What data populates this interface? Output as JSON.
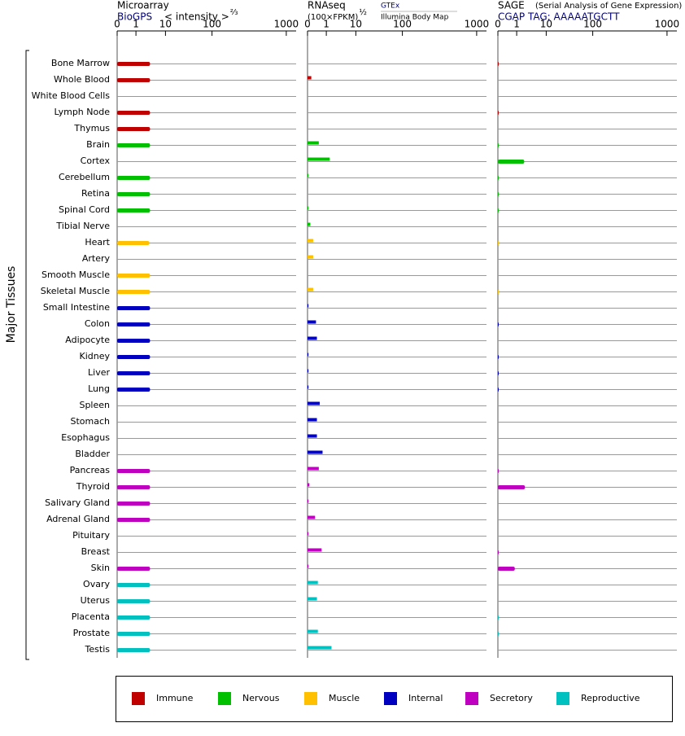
{
  "chart_data": {
    "type": "bar",
    "y_label": "Major Tissues",
    "categories": [
      "Bone Marrow",
      "Whole Blood",
      "White Blood Cells",
      "Lymph Node",
      "Thymus",
      "Brain",
      "Cortex",
      "Cerebellum",
      "Retina",
      "Spinal Cord",
      "Tibial Nerve",
      "Heart",
      "Artery",
      "Smooth Muscle",
      "Skeletal Muscle",
      "Small Intestine",
      "Colon",
      "Adipocyte",
      "Kidney",
      "Liver",
      "Lung",
      "Spleen",
      "Stomach",
      "Esophagus",
      "Bladder",
      "Pancreas",
      "Thyroid",
      "Salivary Gland",
      "Adrenal Gland",
      "Pituitary",
      "Breast",
      "Skin",
      "Ovary",
      "Uterus",
      "Placenta",
      "Prostate",
      "Testis"
    ],
    "category_colors": [
      "#c00000",
      "#c00000",
      "#c00000",
      "#c00000",
      "#c00000",
      "#00c000",
      "#00c000",
      "#00c000",
      "#00c000",
      "#00c000",
      "#00c000",
      "#ffc000",
      "#ffc000",
      "#ffc000",
      "#ffc000",
      "#0000c0",
      "#0000c0",
      "#0000c0",
      "#0000c0",
      "#0000c0",
      "#0000c0",
      "#0000c0",
      "#0000c0",
      "#0000c0",
      "#0000c0",
      "#c000c0",
      "#c000c0",
      "#c000c0",
      "#c000c0",
      "#c000c0",
      "#c000c0",
      "#c000c0",
      "#00c0c0",
      "#00c0c0",
      "#00c0c0",
      "#00c0c0",
      "#00c0c0"
    ],
    "legend": [
      {
        "name": "Immune",
        "color": "#c00000"
      },
      {
        "name": "Nervous",
        "color": "#00c000"
      },
      {
        "name": "Muscle",
        "color": "#ffc000"
      },
      {
        "name": "Internal",
        "color": "#0000c0"
      },
      {
        "name": "Secretory",
        "color": "#c000c0"
      },
      {
        "name": "Reproductive",
        "color": "#00c0c0"
      }
    ],
    "panels": [
      {
        "title": "Microarray",
        "subtitle": "BioGPS",
        "axis_label": "< intensity >",
        "axis_exponent": "⅔",
        "xlim": [
          0,
          1000
        ],
        "xticks": [
          0,
          1,
          10,
          100,
          1000
        ],
        "values": [
          3,
          3,
          null,
          3,
          3,
          3,
          null,
          3,
          3,
          3,
          null,
          2.8,
          null,
          3,
          3,
          3,
          3,
          3,
          3,
          3,
          3,
          null,
          null,
          null,
          null,
          3,
          3,
          3,
          3,
          null,
          null,
          3,
          3,
          3,
          3,
          3,
          3
        ]
      },
      {
        "title": "RNAseq",
        "axis_label": "(100×FPKM)",
        "axis_exponent": "½",
        "sources": [
          "GTEx",
          "Illumina Body Map"
        ],
        "xlim": [
          0,
          1000
        ],
        "xticks": [
          0,
          1,
          10,
          100,
          1000
        ],
        "values": [
          null,
          0.2,
          null,
          null,
          null,
          0.6,
          1.3,
          0.05,
          null,
          0.05,
          0.15,
          0.3,
          0.3,
          null,
          0.3,
          0.05,
          0.45,
          0.5,
          0.05,
          0.05,
          0.05,
          0.65,
          0.5,
          0.5,
          0.8,
          0.6,
          0.1,
          0.05,
          0.4,
          0.05,
          0.75,
          0.05,
          0.55,
          0.5,
          null,
          0.55,
          1.5
        ]
      },
      {
        "title": "SAGE",
        "note": "(Serial Analysis of Gene Expression)",
        "subtitle": "CGAP TAG: AAAAATGCTT",
        "xlim": [
          0,
          1000
        ],
        "xticks": [
          0,
          1,
          10,
          100,
          1000
        ],
        "values": [
          0.03,
          null,
          null,
          0.03,
          null,
          0.03,
          1.8,
          0.03,
          0.03,
          0.03,
          null,
          0.03,
          null,
          null,
          0.03,
          null,
          0.03,
          null,
          0.03,
          0.03,
          0.03,
          null,
          null,
          null,
          null,
          0.03,
          1.9,
          null,
          null,
          null,
          0.03,
          0.9,
          null,
          null,
          0.03,
          0.03,
          null
        ]
      }
    ]
  }
}
